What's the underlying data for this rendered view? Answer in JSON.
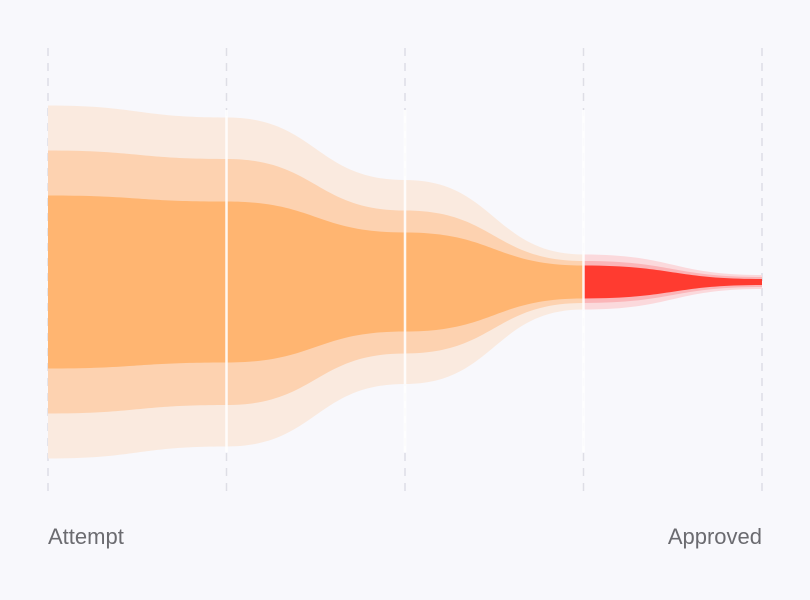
{
  "chart_data": {
    "type": "funnel",
    "categories": [
      "Attempt",
      null,
      null,
      null,
      "Approved"
    ],
    "ylim": [
      0,
      400
    ],
    "series": [
      {
        "color": "#faeadf",
        "final_color": "#fbd9dc",
        "values": [
          353,
          329,
          204,
          55,
          14
        ]
      },
      {
        "color": "#fdd2b0",
        "final_color": "#fbb5b8",
        "values": [
          263,
          246,
          143,
          42,
          10
        ]
      },
      {
        "color": "#ffb571",
        "final_color": "#ff3b30",
        "values": [
          173,
          161,
          99,
          33,
          6
        ]
      }
    ]
  }
}
